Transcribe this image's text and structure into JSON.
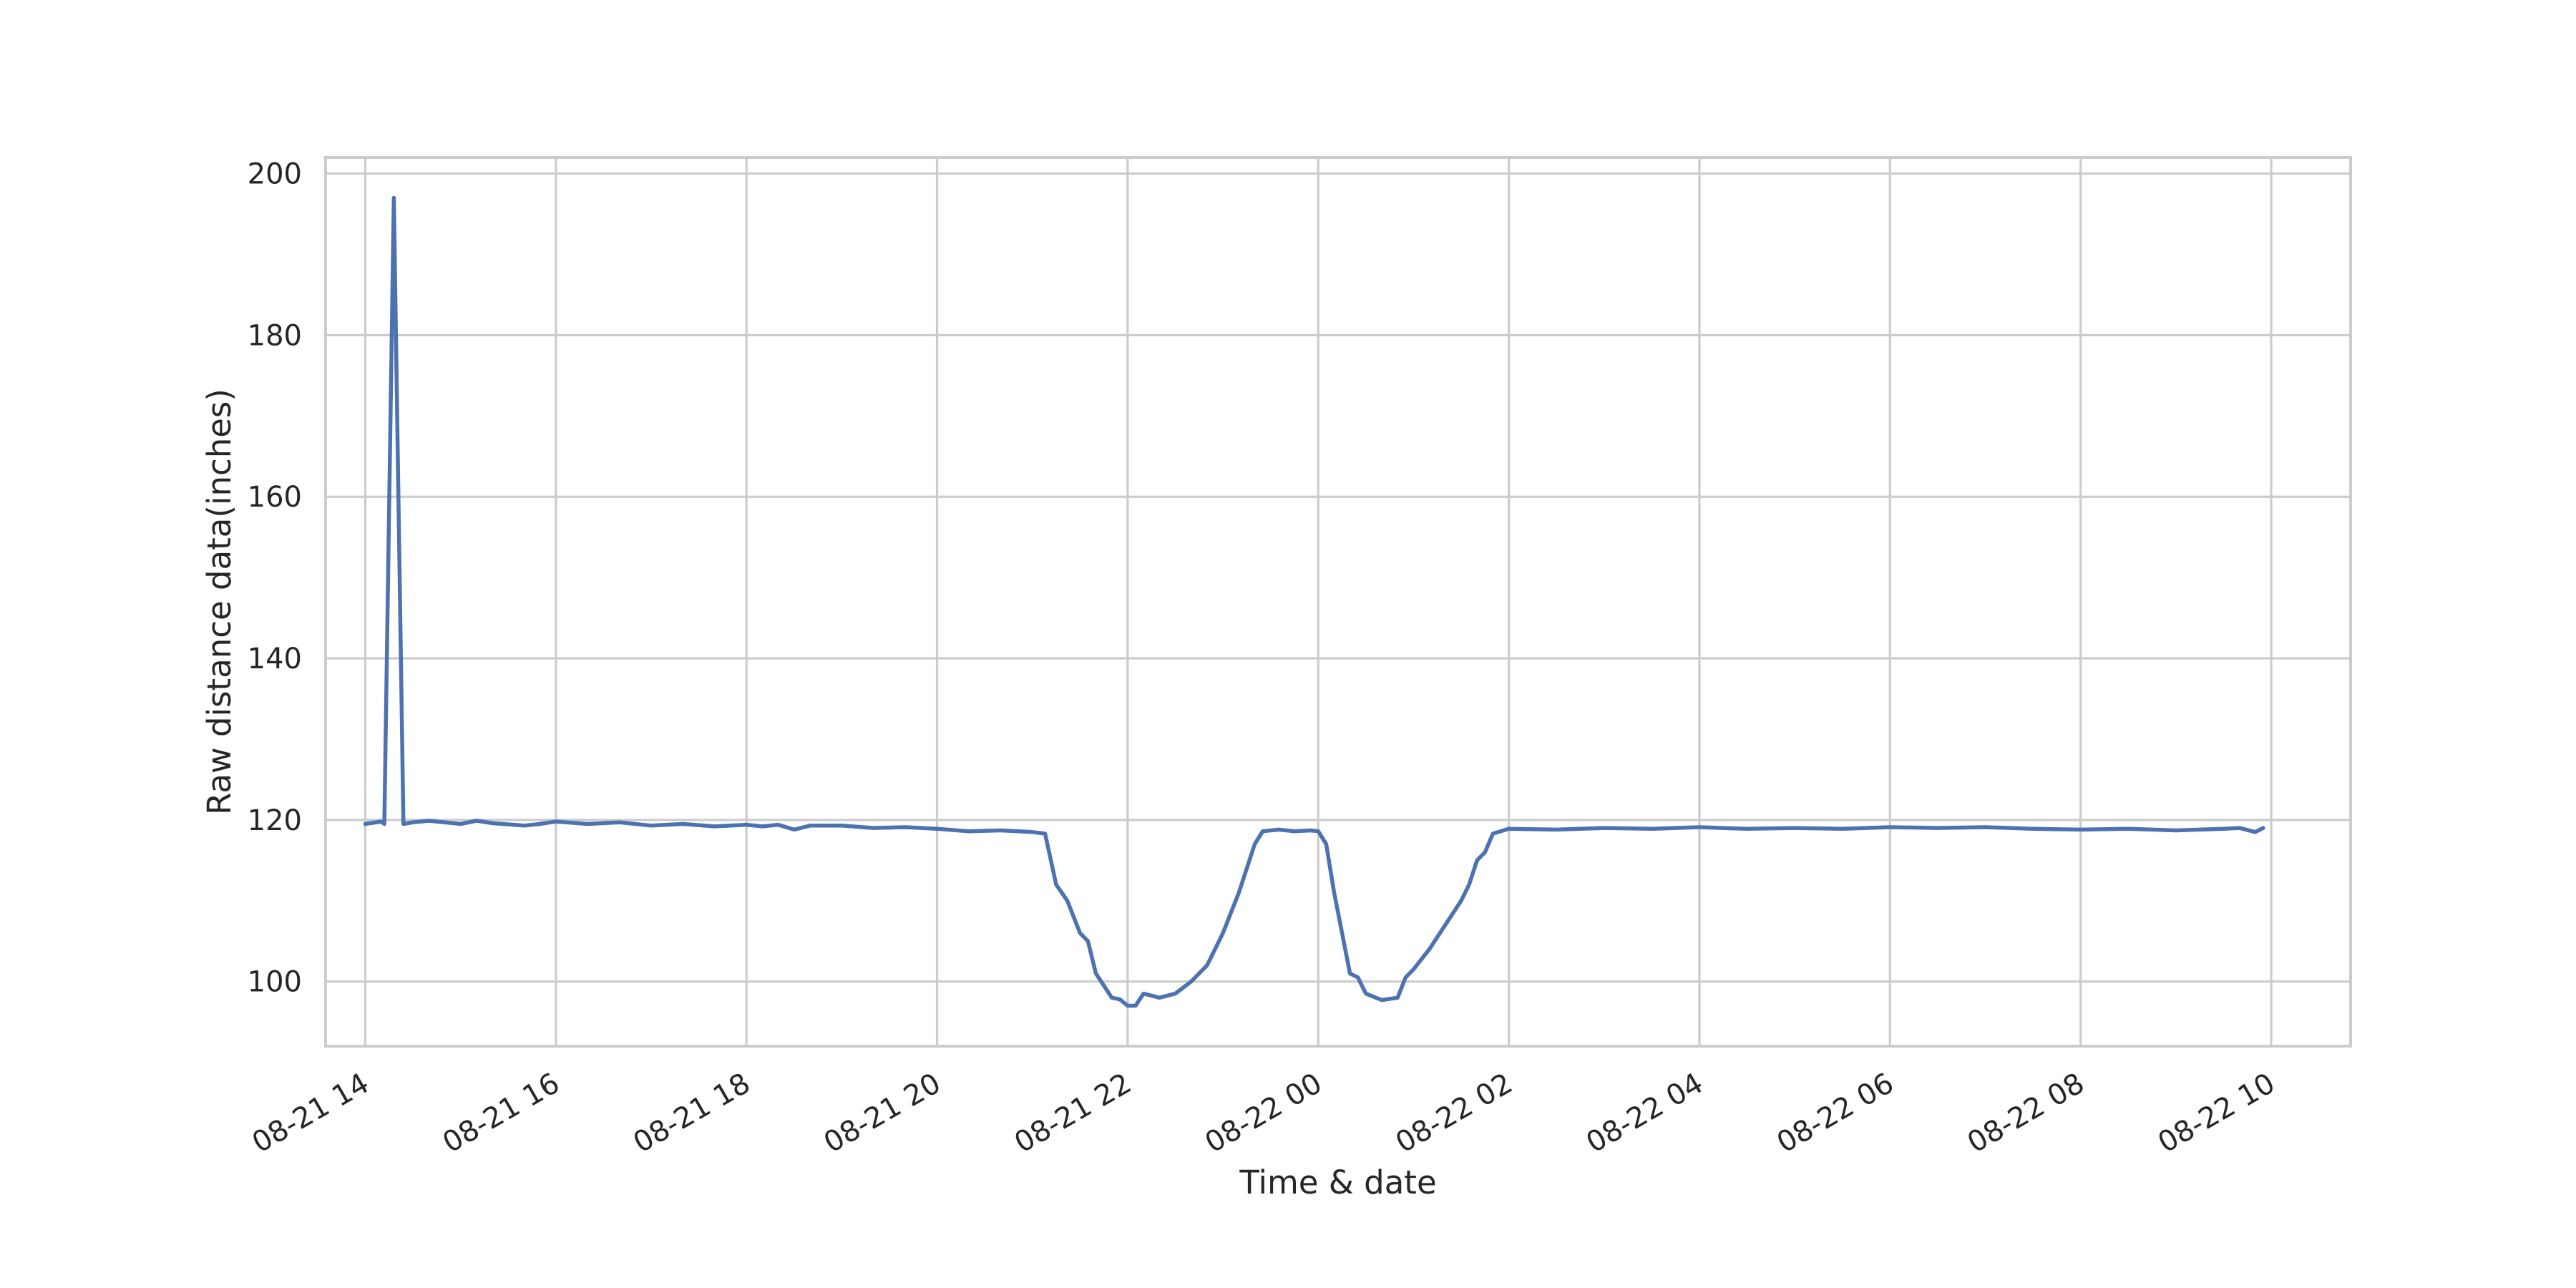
{
  "chart_data": {
    "type": "line",
    "title": "",
    "xlabel": "Time & date",
    "ylabel": "Raw distance data(inches)",
    "x_axis_type": "datetime",
    "xlim": [
      "2017-08-21 13:35",
      "2017-08-22 10:50"
    ],
    "ylim": [
      92,
      202
    ],
    "grid": true,
    "legend": "none",
    "xticks": [
      {
        "value": "2017-08-21 14:00",
        "label": "08-21 14"
      },
      {
        "value": "2017-08-21 16:00",
        "label": "08-21 16"
      },
      {
        "value": "2017-08-21 18:00",
        "label": "08-21 18"
      },
      {
        "value": "2017-08-21 20:00",
        "label": "08-21 20"
      },
      {
        "value": "2017-08-21 22:00",
        "label": "08-21 22"
      },
      {
        "value": "2017-08-22 00:00",
        "label": "08-22 00"
      },
      {
        "value": "2017-08-22 02:00",
        "label": "08-22 02"
      },
      {
        "value": "2017-08-22 04:00",
        "label": "08-22 04"
      },
      {
        "value": "2017-08-22 06:00",
        "label": "08-22 06"
      },
      {
        "value": "2017-08-22 08:00",
        "label": "08-22 08"
      },
      {
        "value": "2017-08-22 10:00",
        "label": "08-22 10"
      }
    ],
    "yticks": [
      {
        "value": 100,
        "label": "100"
      },
      {
        "value": 120,
        "label": "120"
      },
      {
        "value": 140,
        "label": "140"
      },
      {
        "value": 160,
        "label": "160"
      },
      {
        "value": 180,
        "label": "180"
      },
      {
        "value": 200,
        "label": "200"
      }
    ],
    "series": [
      {
        "color": "#4c72b0",
        "points": [
          [
            "2017-08-21 14:00",
            119.5
          ],
          [
            "2017-08-21 14:10",
            119.8
          ],
          [
            "2017-08-21 14:12",
            119.5
          ],
          [
            "2017-08-21 14:18",
            197.0
          ],
          [
            "2017-08-21 14:24",
            119.5
          ],
          [
            "2017-08-21 14:30",
            119.7
          ],
          [
            "2017-08-21 14:40",
            119.9
          ],
          [
            "2017-08-21 15:00",
            119.5
          ],
          [
            "2017-08-21 15:10",
            119.9
          ],
          [
            "2017-08-21 15:20",
            119.6
          ],
          [
            "2017-08-21 15:40",
            119.3
          ],
          [
            "2017-08-21 15:50",
            119.5
          ],
          [
            "2017-08-21 16:00",
            119.8
          ],
          [
            "2017-08-21 16:20",
            119.5
          ],
          [
            "2017-08-21 16:40",
            119.7
          ],
          [
            "2017-08-21 17:00",
            119.3
          ],
          [
            "2017-08-21 17:20",
            119.5
          ],
          [
            "2017-08-21 17:40",
            119.2
          ],
          [
            "2017-08-21 18:00",
            119.4
          ],
          [
            "2017-08-21 18:10",
            119.2
          ],
          [
            "2017-08-21 18:20",
            119.4
          ],
          [
            "2017-08-21 18:30",
            118.8
          ],
          [
            "2017-08-21 18:40",
            119.3
          ],
          [
            "2017-08-21 19:00",
            119.3
          ],
          [
            "2017-08-21 19:20",
            119.0
          ],
          [
            "2017-08-21 19:40",
            119.1
          ],
          [
            "2017-08-21 20:00",
            118.9
          ],
          [
            "2017-08-21 20:20",
            118.6
          ],
          [
            "2017-08-21 20:40",
            118.7
          ],
          [
            "2017-08-21 21:00",
            118.5
          ],
          [
            "2017-08-21 21:08",
            118.3
          ],
          [
            "2017-08-21 21:15",
            112.0
          ],
          [
            "2017-08-21 21:22",
            110.0
          ],
          [
            "2017-08-21 21:30",
            106.0
          ],
          [
            "2017-08-21 21:35",
            105.0
          ],
          [
            "2017-08-21 21:40",
            101.0
          ],
          [
            "2017-08-21 21:50",
            98.0
          ],
          [
            "2017-08-21 21:55",
            97.8
          ],
          [
            "2017-08-21 22:00",
            97.0
          ],
          [
            "2017-08-21 22:05",
            97.0
          ],
          [
            "2017-08-21 22:10",
            98.5
          ],
          [
            "2017-08-21 22:20",
            98.0
          ],
          [
            "2017-08-21 22:30",
            98.5
          ],
          [
            "2017-08-21 22:40",
            100.0
          ],
          [
            "2017-08-21 22:50",
            102.0
          ],
          [
            "2017-08-21 23:00",
            106.0
          ],
          [
            "2017-08-21 23:10",
            111.0
          ],
          [
            "2017-08-21 23:15",
            114.0
          ],
          [
            "2017-08-21 23:20",
            117.0
          ],
          [
            "2017-08-21 23:25",
            118.6
          ],
          [
            "2017-08-21 23:35",
            118.8
          ],
          [
            "2017-08-21 23:45",
            118.6
          ],
          [
            "2017-08-21 23:55",
            118.7
          ],
          [
            "2017-08-22 00:00",
            118.6
          ],
          [
            "2017-08-22 00:05",
            117.0
          ],
          [
            "2017-08-22 00:10",
            111.0
          ],
          [
            "2017-08-22 00:20",
            101.0
          ],
          [
            "2017-08-22 00:25",
            100.5
          ],
          [
            "2017-08-22 00:30",
            98.5
          ],
          [
            "2017-08-22 00:40",
            97.7
          ],
          [
            "2017-08-22 00:50",
            98.0
          ],
          [
            "2017-08-22 00:55",
            100.5
          ],
          [
            "2017-08-22 01:00",
            101.5
          ],
          [
            "2017-08-22 01:10",
            104.0
          ],
          [
            "2017-08-22 01:20",
            107.0
          ],
          [
            "2017-08-22 01:30",
            110.0
          ],
          [
            "2017-08-22 01:35",
            112.0
          ],
          [
            "2017-08-22 01:40",
            115.0
          ],
          [
            "2017-08-22 01:45",
            116.0
          ],
          [
            "2017-08-22 01:50",
            118.3
          ],
          [
            "2017-08-22 02:00",
            118.9
          ],
          [
            "2017-08-22 02:30",
            118.8
          ],
          [
            "2017-08-22 03:00",
            119.0
          ],
          [
            "2017-08-22 03:30",
            118.9
          ],
          [
            "2017-08-22 04:00",
            119.1
          ],
          [
            "2017-08-22 04:30",
            118.9
          ],
          [
            "2017-08-22 05:00",
            119.0
          ],
          [
            "2017-08-22 05:30",
            118.9
          ],
          [
            "2017-08-22 06:00",
            119.1
          ],
          [
            "2017-08-22 06:30",
            119.0
          ],
          [
            "2017-08-22 07:00",
            119.1
          ],
          [
            "2017-08-22 07:30",
            118.9
          ],
          [
            "2017-08-22 08:00",
            118.8
          ],
          [
            "2017-08-22 08:30",
            118.9
          ],
          [
            "2017-08-22 09:00",
            118.7
          ],
          [
            "2017-08-22 09:30",
            118.9
          ],
          [
            "2017-08-22 09:40",
            119.0
          ],
          [
            "2017-08-22 09:50",
            118.5
          ],
          [
            "2017-08-22 09:55",
            119.0
          ]
        ]
      }
    ]
  }
}
